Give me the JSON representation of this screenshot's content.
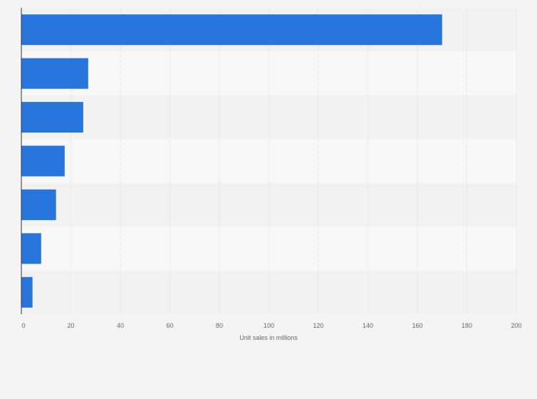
{
  "chart_data": {
    "type": "bar",
    "orientation": "horizontal",
    "categories": [
      "",
      "",
      "",
      "",
      "",
      "",
      ""
    ],
    "values": [
      170,
      27,
      25,
      17.5,
      14,
      8,
      4.5
    ],
    "xlabel": "Unit sales in millions",
    "ylabel": "",
    "xlim": [
      0,
      200
    ],
    "xticks": [
      0,
      20,
      40,
      60,
      80,
      100,
      120,
      140,
      160,
      180,
      200
    ],
    "grid": true,
    "colors": {
      "bar": "#2876dd",
      "band_light": "#f8f8f8",
      "band_dark": "#f2f2f2",
      "grid": "#dedede",
      "axis": "#333333",
      "text": "#666666"
    }
  }
}
